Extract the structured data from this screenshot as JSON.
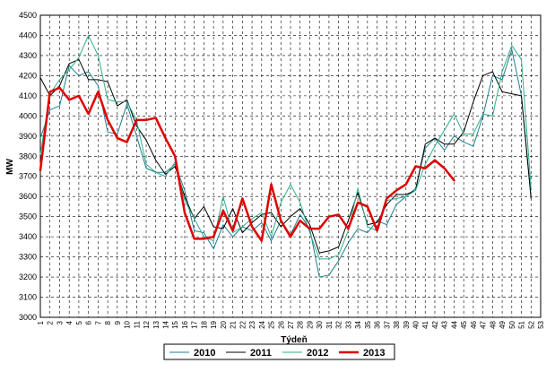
{
  "chart_data": {
    "type": "line",
    "title": "",
    "xlabel": "Týdeň",
    "ylabel": "MW",
    "ylim": [
      3000,
      4500
    ],
    "yticks": [
      3000,
      3100,
      3200,
      3300,
      3400,
      3500,
      3600,
      3700,
      3800,
      3900,
      4000,
      4100,
      4200,
      4300,
      4400,
      4500
    ],
    "x": [
      1,
      2,
      3,
      4,
      5,
      6,
      7,
      8,
      9,
      10,
      11,
      12,
      13,
      14,
      15,
      16,
      17,
      18,
      19,
      20,
      21,
      22,
      23,
      24,
      25,
      26,
      27,
      28,
      29,
      30,
      31,
      32,
      33,
      34,
      35,
      36,
      37,
      38,
      39,
      40,
      41,
      42,
      43,
      44,
      45,
      46,
      47,
      48,
      49,
      50,
      51,
      52,
      53
    ],
    "xlim": [
      1,
      53
    ],
    "grid": true,
    "legend_position": "bottom",
    "series": [
      {
        "name": "2010",
        "color": "#1f7f8f",
        "width": 1,
        "values": [
          3890,
          4030,
          4050,
          4250,
          4200,
          4220,
          4150,
          3920,
          3910,
          4060,
          3900,
          3740,
          3720,
          3720,
          3760,
          3630,
          3430,
          3420,
          3340,
          3460,
          3400,
          3450,
          3430,
          3470,
          3380,
          3480,
          3410,
          3510,
          3440,
          3200,
          3210,
          3280,
          3370,
          3440,
          3420,
          3480,
          3460,
          3560,
          3600,
          3640,
          3840,
          3890,
          3830,
          3900,
          3870,
          3850,
          4000,
          4200,
          4180,
          4330,
          4100,
          3600,
          null
        ]
      },
      {
        "name": "2011",
        "color": "#000000",
        "width": 1,
        "values": [
          4190,
          4100,
          4150,
          4260,
          4280,
          4180,
          4180,
          4170,
          4050,
          4080,
          3950,
          3880,
          3780,
          3710,
          3750,
          3600,
          3490,
          3550,
          3450,
          3440,
          3540,
          3420,
          3470,
          3510,
          3520,
          3450,
          3500,
          3540,
          3460,
          3320,
          3330,
          3350,
          3480,
          3620,
          3460,
          3470,
          3560,
          3610,
          3610,
          3630,
          3860,
          3890,
          3860,
          3860,
          3920,
          4070,
          4200,
          4220,
          4120,
          4110,
          4100,
          3590,
          null
        ]
      },
      {
        "name": "2012",
        "color": "#2fae8c",
        "width": 1,
        "values": [
          3810,
          4110,
          4180,
          4230,
          4290,
          4400,
          4300,
          4080,
          4070,
          4070,
          3980,
          3760,
          3720,
          3700,
          3770,
          3580,
          3490,
          3400,
          3380,
          3600,
          3420,
          3450,
          3490,
          3520,
          3400,
          3570,
          3660,
          3570,
          3420,
          3290,
          3290,
          3310,
          3430,
          3640,
          3450,
          3430,
          3580,
          3590,
          3600,
          3630,
          3760,
          3850,
          3930,
          4010,
          3910,
          3910,
          4010,
          4000,
          4220,
          4350,
          4280,
          3640,
          null
        ]
      },
      {
        "name": "2013",
        "color": "#e00000",
        "width": 2.5,
        "values": [
          3730,
          4120,
          4140,
          4080,
          4100,
          4010,
          4120,
          3980,
          3890,
          3870,
          3980,
          3980,
          3990,
          3890,
          3800,
          3520,
          3390,
          3390,
          3400,
          3530,
          3430,
          3590,
          3450,
          3380,
          3660,
          3480,
          3400,
          3480,
          3440,
          3440,
          3500,
          3510,
          3440,
          3570,
          3550,
          3430,
          3590,
          3630,
          3660,
          3750,
          3740,
          3780,
          3740,
          3680,
          null,
          null,
          null,
          null,
          null,
          null,
          null,
          null,
          null
        ]
      }
    ]
  }
}
